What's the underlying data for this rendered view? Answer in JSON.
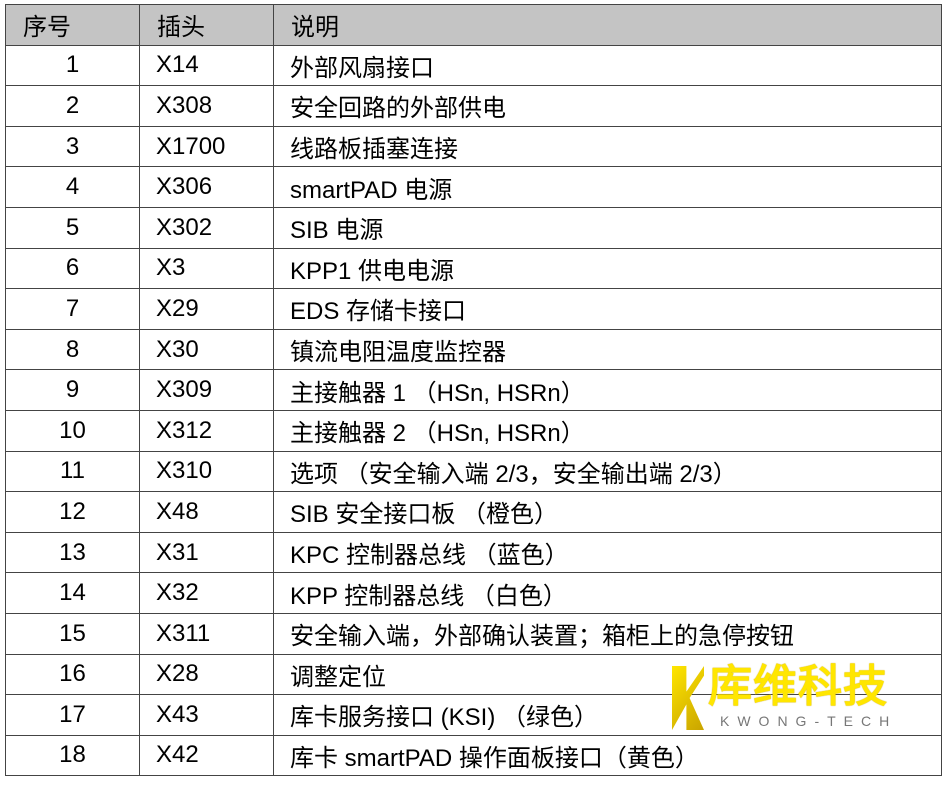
{
  "headers": [
    "序号",
    "插头",
    "说明"
  ],
  "rows": [
    [
      "1",
      "X14",
      "外部风扇接口"
    ],
    [
      "2",
      "X308",
      "安全回路的外部供电"
    ],
    [
      "3",
      "X1700",
      "线路板插塞连接"
    ],
    [
      "4",
      "X306",
      "smartPAD 电源"
    ],
    [
      "5",
      "X302",
      "SIB 电源"
    ],
    [
      "6",
      "X3",
      "KPP1 供电电源"
    ],
    [
      "7",
      "X29",
      "EDS 存储卡接口"
    ],
    [
      "8",
      "X30",
      "镇流电阻温度监控器"
    ],
    [
      "9",
      "X309",
      "主接触器 1 （HSn, HSRn）"
    ],
    [
      "10",
      "X312",
      "主接触器 2 （HSn, HSRn）"
    ],
    [
      "11",
      "X310",
      "选项 （安全输入端 2/3，安全输出端 2/3）"
    ],
    [
      "12",
      "X48",
      "SIB 安全接口板 （橙色）"
    ],
    [
      "13",
      "X31",
      "KPC 控制器总线 （蓝色）"
    ],
    [
      "14",
      "X32",
      "KPP 控制器总线 （白色）"
    ],
    [
      "15",
      "X311",
      "安全输入端，外部确认装置；箱柜上的急停按钮"
    ],
    [
      "16",
      "X28",
      "调整定位"
    ],
    [
      "17",
      "X43",
      "库卡服务接口 (KSI) （绿色）"
    ],
    [
      "18",
      "X42",
      "库卡 smartPAD 操作面板接口（黄色）"
    ]
  ],
  "watermark": {
    "name_cn": "库维科技",
    "name_en": "KWONG-TECH",
    "color": "#ffe600"
  }
}
